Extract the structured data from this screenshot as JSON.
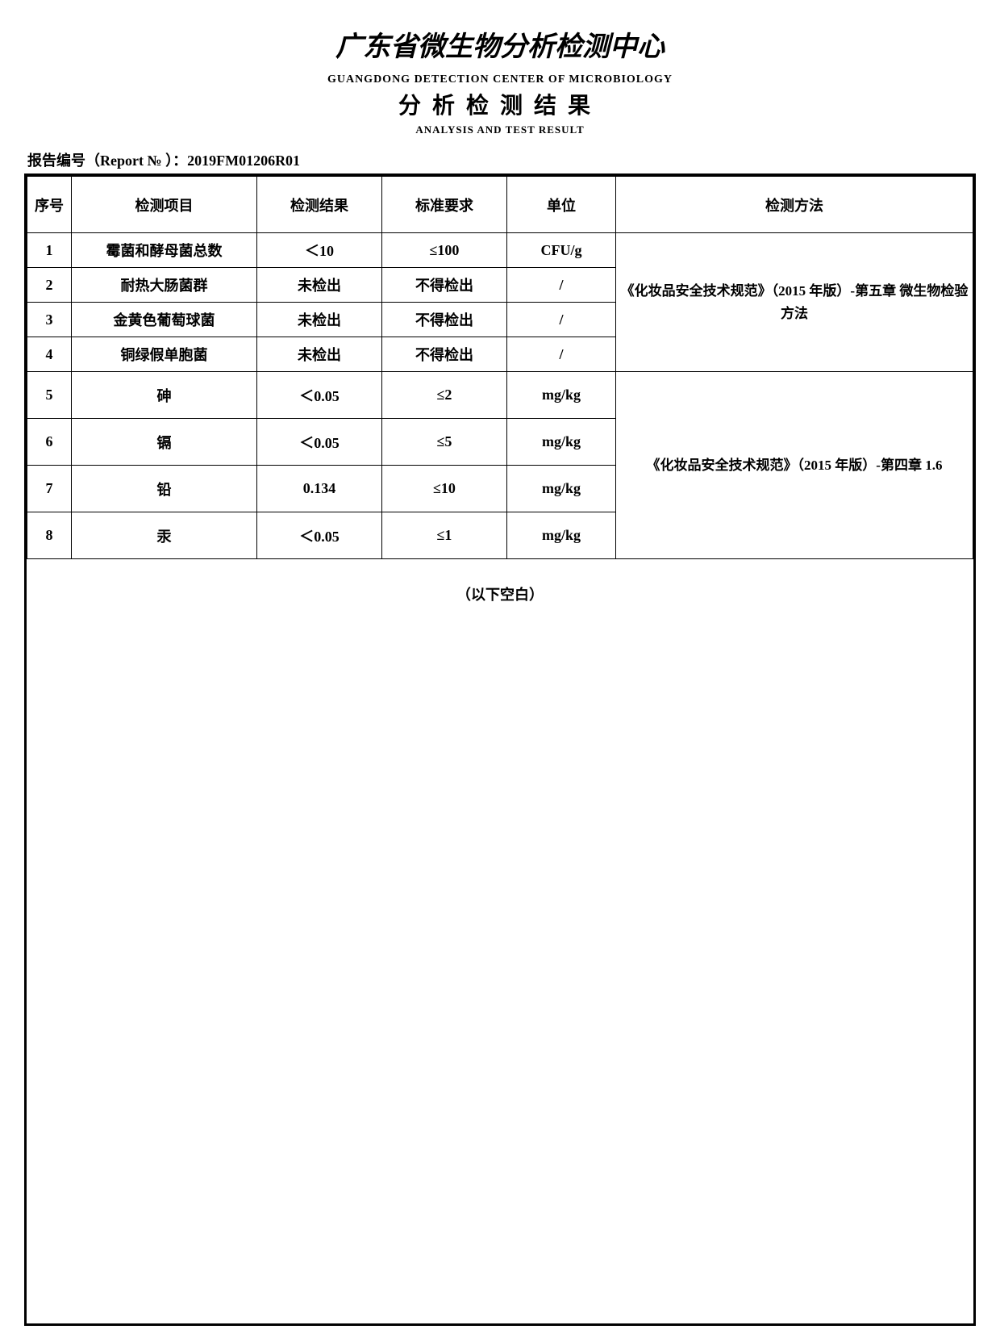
{
  "header": {
    "title_cn": "广东省微生物分析检测中心",
    "subtitle_en1": "GUANGDONG  DETECTION  CENTER  OF  MICROBIOLOGY",
    "title_sub_cn": "分析检测结果",
    "subtitle_en2": "ANALYSIS AND TEST RESULT",
    "report_label": "报告编号（Report № ）：",
    "report_no": "2019FM01206R01"
  },
  "table": {
    "columns": {
      "seq": "序号",
      "item": "检测项目",
      "result": "检测结果",
      "requirement": "标准要求",
      "unit": "单位",
      "method": "检测方法"
    },
    "rows": [
      {
        "seq": "1",
        "item": "霉菌和酵母菌总数",
        "result": "＜10",
        "req": "≤100",
        "unit": "CFU/g"
      },
      {
        "seq": "2",
        "item": "耐热大肠菌群",
        "result": "未检出",
        "req": "不得检出",
        "unit": "/"
      },
      {
        "seq": "3",
        "item": "金黄色葡萄球菌",
        "result": "未检出",
        "req": "不得检出",
        "unit": "/"
      },
      {
        "seq": "4",
        "item": "铜绿假单胞菌",
        "result": "未检出",
        "req": "不得检出",
        "unit": "/"
      },
      {
        "seq": "5",
        "item": "砷",
        "result": "＜0.05",
        "req": "≤2",
        "unit": "mg/kg"
      },
      {
        "seq": "6",
        "item": "镉",
        "result": "＜0.05",
        "req": "≤5",
        "unit": "mg/kg"
      },
      {
        "seq": "7",
        "item": "铅",
        "result": "0.134",
        "req": "≤10",
        "unit": "mg/kg"
      },
      {
        "seq": "8",
        "item": "汞",
        "result": "＜0.05",
        "req": "≤1",
        "unit": "mg/kg"
      }
    ],
    "method_group1": "《化妆品安全技术规范》（2015 年版）-第五章 微生物检验方法",
    "method_group2": "《化妆品安全技术规范》（2015 年版）-第四章 1.6"
  },
  "blank_note": "（以下空白）",
  "colors": {
    "text": "#000000",
    "background": "#ffffff",
    "border": "#000000"
  },
  "fonts": {
    "title_size_pt": 26,
    "subtitle_size_pt": 11,
    "body_size_pt": 14
  }
}
